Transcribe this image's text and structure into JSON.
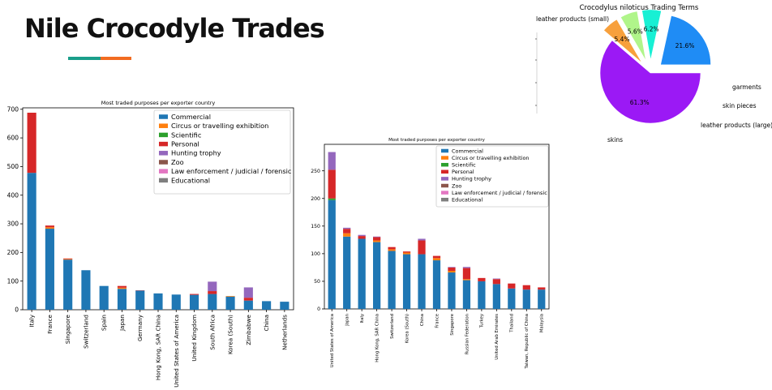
{
  "slide": {
    "title": "Nile Crocodyle Trades",
    "accent_colors": [
      "#1a9e8a",
      "#f26b21"
    ]
  },
  "purpose_colors": {
    "Commercial": "#1f77b4",
    "Circus or travelling exhibition": "#ff7f0e",
    "Scientific": "#2ca02c",
    "Personal": "#d62728",
    "Hunting trophy": "#9467bd",
    "Zoo": "#8c564b",
    "Law enforcement / judicial / forensic": "#e377c2",
    "Educational": "#7f7f7f"
  },
  "chart_data": [
    {
      "type": "bar",
      "stacked": true,
      "title": "Most traded purposes per exporter country",
      "categories": [
        "Italy",
        "France",
        "Singapore",
        "Switzerland",
        "Spain",
        "Japan",
        "Germany",
        "Hong Kong, SAR China",
        "United States of America",
        "United Kingdom",
        "South Africa",
        "Korea (South)",
        "Zimbabwe",
        "China",
        "Netherlands"
      ],
      "series": [
        {
          "name": "Commercial",
          "values": [
            478,
            283,
            175,
            138,
            83,
            73,
            67,
            57,
            53,
            52,
            55,
            46,
            32,
            30,
            28
          ]
        },
        {
          "name": "Circus or travelling exhibition",
          "values": [
            0,
            5,
            2,
            0,
            0,
            4,
            0,
            0,
            0,
            0,
            0,
            2,
            0,
            0,
            0
          ]
        },
        {
          "name": "Scientific",
          "values": [
            0,
            0,
            0,
            0,
            0,
            0,
            0,
            0,
            0,
            0,
            0,
            0,
            0,
            0,
            0
          ]
        },
        {
          "name": "Personal",
          "values": [
            210,
            6,
            2,
            0,
            0,
            6,
            1,
            0,
            0,
            3,
            10,
            0,
            10,
            0,
            0
          ]
        },
        {
          "name": "Hunting trophy",
          "values": [
            0,
            0,
            0,
            0,
            0,
            0,
            0,
            0,
            0,
            0,
            33,
            0,
            36,
            0,
            0
          ]
        },
        {
          "name": "Zoo",
          "values": [
            0,
            0,
            0,
            0,
            0,
            0,
            0,
            0,
            0,
            0,
            0,
            0,
            0,
            0,
            0
          ]
        },
        {
          "name": "Law enforcement / judicial / forensic",
          "values": [
            0,
            0,
            0,
            0,
            0,
            0,
            0,
            0,
            0,
            0,
            0,
            0,
            0,
            0,
            0
          ]
        },
        {
          "name": "Educational",
          "values": [
            0,
            0,
            0,
            0,
            0,
            0,
            0,
            0,
            0,
            0,
            0,
            0,
            0,
            0,
            0
          ]
        }
      ],
      "yticks": [
        0,
        100,
        200,
        300,
        400,
        500,
        600,
        700
      ],
      "ylim": [
        0,
        705
      ],
      "legend": "top-right",
      "grid": false
    },
    {
      "type": "bar",
      "stacked": true,
      "title": "Most traded purposes per exporter country",
      "categories": [
        "United States of America",
        "Japan",
        "Italy",
        "Hong Kong, SAR China",
        "Switzerland",
        "Korea (South)",
        "China",
        "France",
        "Singapore",
        "Russian Federation",
        "Turkey",
        "United Arab Emirates",
        "Thailand",
        "Taiwan, Republic of China",
        "Malaysia"
      ],
      "series": [
        {
          "name": "Commercial",
          "values": [
            197,
            131,
            127,
            121,
            105,
            99,
            99,
            88,
            66,
            52,
            50,
            45,
            37,
            35,
            35
          ]
        },
        {
          "name": "Circus or travelling exhibition",
          "values": [
            0,
            6,
            0,
            3,
            3,
            3,
            0,
            4,
            3,
            2,
            0,
            0,
            0,
            0,
            0
          ]
        },
        {
          "name": "Scientific",
          "values": [
            3,
            0,
            0,
            0,
            0,
            0,
            0,
            0,
            0,
            0,
            0,
            0,
            0,
            0,
            0
          ]
        },
        {
          "name": "Personal",
          "values": [
            52,
            8,
            5,
            6,
            4,
            2,
            25,
            4,
            6,
            20,
            6,
            9,
            9,
            8,
            4
          ]
        },
        {
          "name": "Hunting trophy",
          "values": [
            32,
            2,
            2,
            1,
            0,
            0,
            3,
            0,
            1,
            2,
            0,
            1,
            0,
            0,
            0
          ]
        },
        {
          "name": "Zoo",
          "values": [
            0,
            0,
            0,
            0,
            0,
            0,
            0,
            0,
            0,
            0,
            0,
            0,
            0,
            0,
            0
          ]
        },
        {
          "name": "Law enforcement / judicial / forensic",
          "values": [
            0,
            0,
            0,
            0,
            0,
            0,
            0,
            0,
            0,
            0,
            0,
            0,
            0,
            0,
            0
          ]
        },
        {
          "name": "Educational",
          "values": [
            0,
            0,
            0,
            0,
            0,
            0,
            0,
            0,
            0,
            0,
            0,
            0,
            0,
            0,
            0
          ]
        }
      ],
      "yticks": [
        0,
        50,
        100,
        150,
        200,
        250
      ],
      "ylim": [
        0,
        298
      ],
      "legend": "top-right",
      "grid": false
    },
    {
      "type": "pie",
      "title": "Crocodylus niloticus Trading Terms",
      "labels": [
        "leather products (small)",
        "garments",
        "skin pieces",
        "leather products (large)",
        "skins"
      ],
      "values": [
        61.3,
        5.4,
        5.6,
        6.2,
        21.6
      ],
      "value_labels": [
        "61.3%",
        "5.4%",
        "5.6%",
        "6.2%",
        "21.6%"
      ],
      "colors": [
        "#9b19f5",
        "#f7a03c",
        "#b0f58a",
        "#18f0d4",
        "#1f8cf5"
      ],
      "exploded": true
    }
  ]
}
